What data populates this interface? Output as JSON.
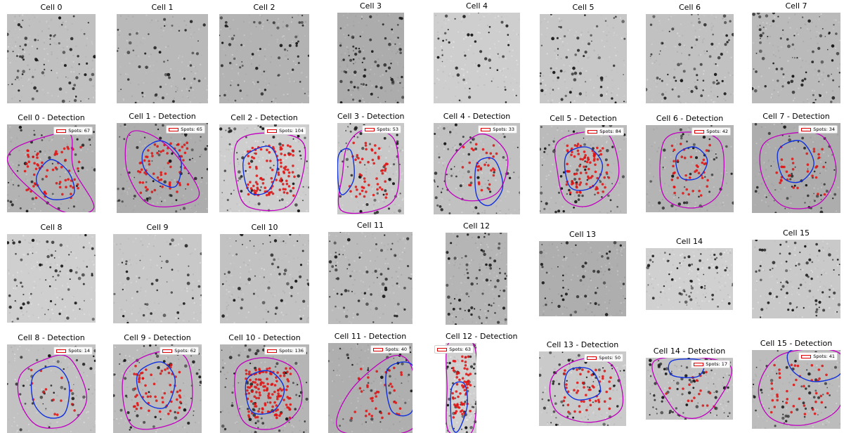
{
  "colors": {
    "spot": "#e01010",
    "cell_outline": "#c000c0",
    "nucleus_outline": "#1030e0",
    "background_gray": "#bdbdbd"
  },
  "panels": [
    {
      "title": "Cell 0"
    },
    {
      "title": "Cell 1"
    },
    {
      "title": "Cell 2"
    },
    {
      "title": "Cell 3"
    },
    {
      "title": "Cell 4"
    },
    {
      "title": "Cell 5"
    },
    {
      "title": "Cell 6"
    },
    {
      "title": "Cell 7"
    },
    {
      "title": "Cell 0 - Detection",
      "legend": "Spots: 67",
      "spots": 67
    },
    {
      "title": "Cell 1 - Detection",
      "legend": "Spots: 65",
      "spots": 65
    },
    {
      "title": "Cell 2 - Detection",
      "legend": "Spots: 104",
      "spots": 104
    },
    {
      "title": "Cell 3 - Detection",
      "legend": "Spots: 53",
      "spots": 53
    },
    {
      "title": "Cell 4 - Detection",
      "legend": "Spots: 33",
      "spots": 33
    },
    {
      "title": "Cell 5 - Detection",
      "legend": "Spots: 84",
      "spots": 84
    },
    {
      "title": "Cell 6 - Detection",
      "legend": "Spots: 42",
      "spots": 42
    },
    {
      "title": "Cell 7 - Detection",
      "legend": "Spots: 34",
      "spots": 34
    },
    {
      "title": "Cell 8"
    },
    {
      "title": "Cell 9"
    },
    {
      "title": "Cell 10"
    },
    {
      "title": "Cell 11"
    },
    {
      "title": "Cell 12"
    },
    {
      "title": "Cell 13"
    },
    {
      "title": "Cell 14"
    },
    {
      "title": "Cell 15"
    },
    {
      "title": "Cell 8 - Detection",
      "legend": "Spots: 14",
      "spots": 14
    },
    {
      "title": "Cell 9 - Detection",
      "legend": "Spots: 62",
      "spots": 62
    },
    {
      "title": "Cell 10 - Detection",
      "legend": "Spots: 136",
      "spots": 136
    },
    {
      "title": "Cell 11 - Detection",
      "legend": "Spots: 40",
      "spots": 40
    },
    {
      "title": "Cell 12 - Detection",
      "legend": "Spots: 63",
      "spots": 63
    },
    {
      "title": "Cell 13 - Detection",
      "legend": "Spots: 50",
      "spots": 50
    },
    {
      "title": "Cell 14 - Detection",
      "legend": "Spots: 17",
      "spots": 17
    },
    {
      "title": "Cell 15 - Detection",
      "legend": "Spots: 41",
      "spots": 41
    }
  ]
}
